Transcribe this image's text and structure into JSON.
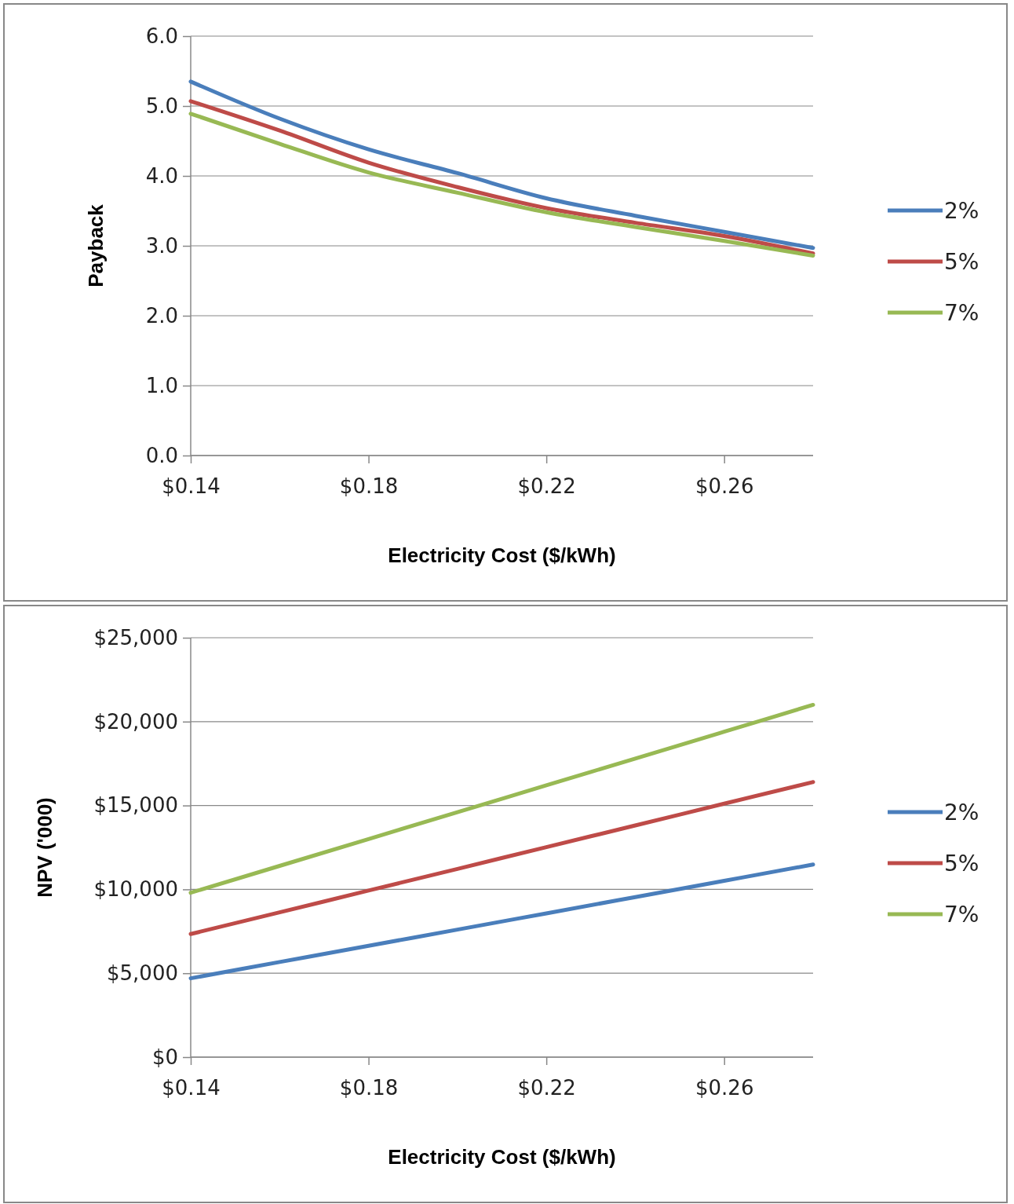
{
  "chart_data": [
    {
      "type": "line",
      "ylabel": "Payback",
      "xlabel": "Electricity Cost ($/kWh)",
      "x": [
        0.14,
        0.16,
        0.18,
        0.2,
        0.22,
        0.24,
        0.26,
        0.28
      ],
      "xlim": [
        0.14,
        0.28
      ],
      "xticks": [
        {
          "value": 0.14,
          "label": "$0.14"
        },
        {
          "value": 0.18,
          "label": "$0.18"
        },
        {
          "value": 0.22,
          "label": "$0.22"
        },
        {
          "value": 0.26,
          "label": "$0.26"
        }
      ],
      "ylim": [
        0,
        6
      ],
      "yticks": [
        {
          "value": 0,
          "label": "0.0"
        },
        {
          "value": 1,
          "label": "1.0"
        },
        {
          "value": 2,
          "label": "2.0"
        },
        {
          "value": 3,
          "label": "3.0"
        },
        {
          "value": 4,
          "label": "4.0"
        },
        {
          "value": 5,
          "label": "5.0"
        },
        {
          "value": 6,
          "label": "6.0"
        }
      ],
      "grid": "y",
      "legend": "right",
      "series": [
        {
          "name": "2%",
          "color": "#4a7ebb",
          "values": [
            5.35,
            4.82,
            4.38,
            4.04,
            3.68,
            3.43,
            3.2,
            2.97
          ]
        },
        {
          "name": "5%",
          "color": "#be4b48",
          "values": [
            5.07,
            4.65,
            4.19,
            3.84,
            3.54,
            3.33,
            3.14,
            2.89
          ]
        },
        {
          "name": "7%",
          "color": "#98b954",
          "values": [
            4.89,
            4.46,
            4.05,
            3.76,
            3.48,
            3.27,
            3.07,
            2.86
          ]
        }
      ]
    },
    {
      "type": "line",
      "ylabel": "NPV ('000)",
      "xlabel": "Electricity Cost ($/kWh)",
      "x": [
        0.14,
        0.16,
        0.18,
        0.2,
        0.22,
        0.24,
        0.26,
        0.28
      ],
      "xlim": [
        0.14,
        0.28
      ],
      "xticks": [
        {
          "value": 0.14,
          "label": "$0.14"
        },
        {
          "value": 0.18,
          "label": "$0.18"
        },
        {
          "value": 0.22,
          "label": "$0.22"
        },
        {
          "value": 0.26,
          "label": "$0.26"
        }
      ],
      "ylim": [
        0,
        25000
      ],
      "yticks": [
        {
          "value": 0,
          "label": "$0"
        },
        {
          "value": 5000,
          "label": "$5,000"
        },
        {
          "value": 10000,
          "label": "$10,000"
        },
        {
          "value": 15000,
          "label": "$15,000"
        },
        {
          "value": 20000,
          "label": "$20,000"
        },
        {
          "value": 25000,
          "label": "$25,000"
        }
      ],
      "grid": "y",
      "legend": "right",
      "series": [
        {
          "name": "2%",
          "color": "#4a7ebb",
          "values": [
            4700,
            5670,
            6640,
            7600,
            8570,
            9540,
            10510,
            11480
          ]
        },
        {
          "name": "5%",
          "color": "#be4b48",
          "values": [
            7340,
            8630,
            9930,
            11220,
            12520,
            13810,
            15110,
            16400
          ]
        },
        {
          "name": "7%",
          "color": "#98b954",
          "values": [
            9800,
            11400,
            13000,
            14600,
            16200,
            17800,
            19400,
            21000
          ]
        }
      ]
    }
  ]
}
